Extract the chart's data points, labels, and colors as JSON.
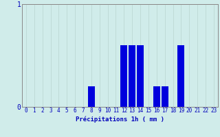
{
  "hours": [
    0,
    1,
    2,
    3,
    4,
    5,
    6,
    7,
    8,
    9,
    10,
    11,
    12,
    13,
    14,
    15,
    16,
    17,
    18,
    19,
    20,
    21,
    22,
    23
  ],
  "values": [
    0,
    0,
    0,
    0,
    0,
    0,
    0,
    0,
    0.2,
    0,
    0,
    0,
    0.6,
    0.6,
    0.6,
    0,
    0.2,
    0.2,
    0,
    0.6,
    0,
    0,
    0,
    0
  ],
  "bar_color": "#0000dd",
  "bg_color": "#d0ecea",
  "grid_color_x": "#b8d4d0",
  "grid_color_y": "#cc3333",
  "axis_color": "#888888",
  "text_color": "#0000bb",
  "xlabel": "Précipitations 1h ( mm )",
  "ylim": [
    0,
    1
  ],
  "yticks": [
    0,
    1
  ],
  "xlabel_fontsize": 6.5,
  "tick_fontsize": 5.5
}
